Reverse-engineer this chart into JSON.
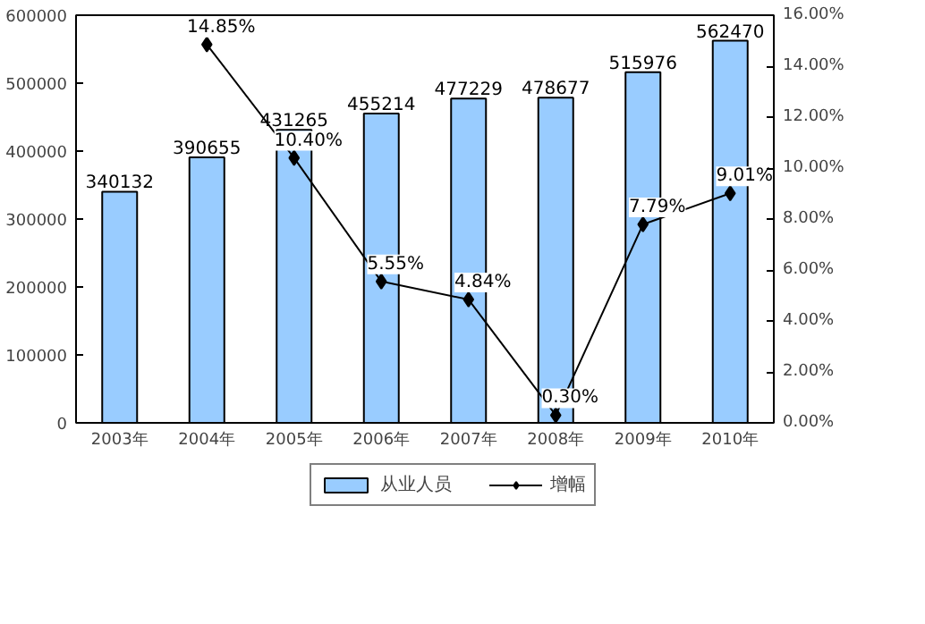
{
  "chart_data": {
    "type": "bar",
    "categories": [
      "2003年",
      "2004年",
      "2005年",
      "2006年",
      "2007年",
      "2008年",
      "2009年",
      "2010年"
    ],
    "series": [
      {
        "name": "从业人员",
        "color": "#99ccff",
        "values": [
          340132,
          390655,
          431265,
          455214,
          477229,
          478677,
          515976,
          562470
        ],
        "value_labels": [
          "340132",
          "390655",
          "431265",
          "455214",
          "477229",
          "478677",
          "515976",
          "562470"
        ]
      },
      {
        "name": "增幅",
        "type": "line",
        "axis": "y2",
        "color": "#000000",
        "marker": "diamond",
        "values": [
          null,
          14.85,
          10.4,
          5.55,
          4.84,
          0.3,
          7.79,
          9.01
        ],
        "value_labels": [
          null,
          "14.85%",
          "10.40%",
          "5.55%",
          "4.84%",
          "0.30%",
          "7.79%",
          "9.01%"
        ]
      }
    ],
    "ylim": [
      0,
      600000
    ],
    "yticks": [
      0,
      100000,
      200000,
      300000,
      400000,
      500000,
      600000
    ],
    "y2lim": [
      0,
      16
    ],
    "y2ticks": [
      {
        "value": 0,
        "label": "0.00%"
      },
      {
        "value": 2,
        "label": "2.00%"
      },
      {
        "value": 4,
        "label": "4.00%"
      },
      {
        "value": 6,
        "label": "6.00%"
      },
      {
        "value": 8,
        "label": "8.00%"
      },
      {
        "value": 10,
        "label": "10.00%"
      },
      {
        "value": 12,
        "label": "12.00%"
      },
      {
        "value": 14,
        "label": "14.00%"
      },
      {
        "value": 16,
        "label": "16.00%"
      }
    ],
    "grid": false,
    "legend": "bottom"
  }
}
